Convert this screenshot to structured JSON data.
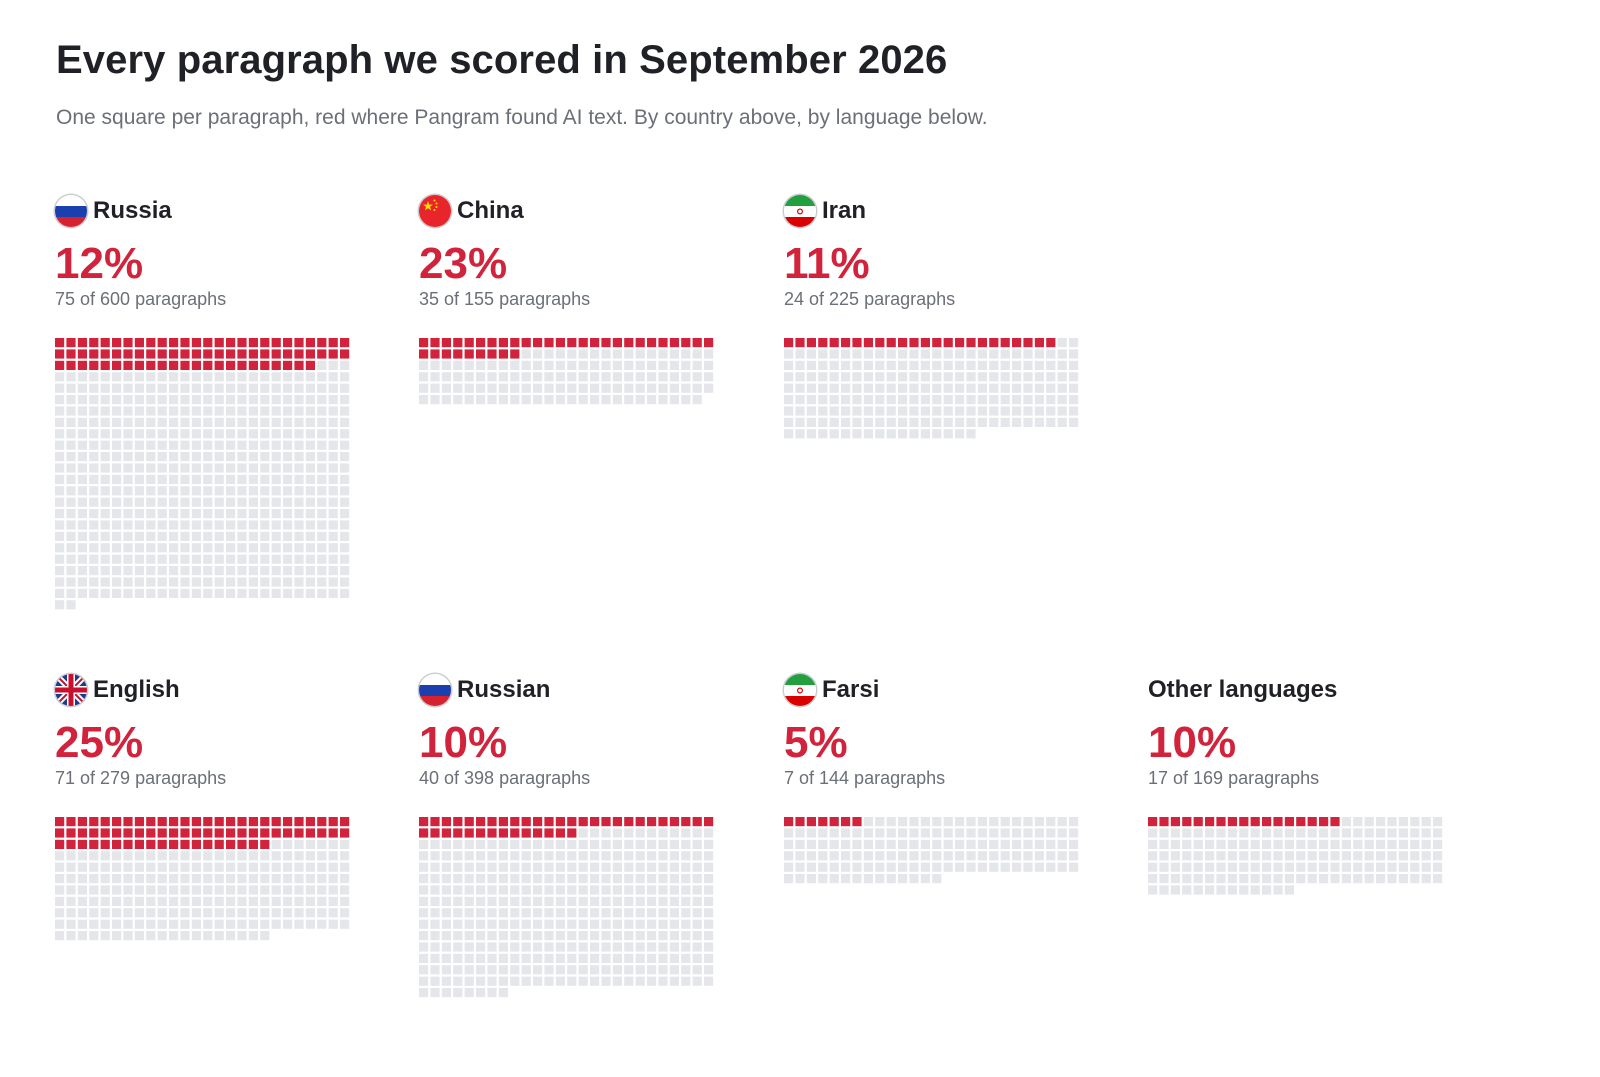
{
  "title": "Every paragraph we scored in September 2026",
  "subtitle": "One square per paragraph, red where Pangram found AI text. By country above, by language below.",
  "colors": {
    "ai": "#d2233c",
    "other": "#e4e6ea"
  },
  "chart_data": [
    {
      "type": "waffle",
      "name": "Russia",
      "flag": "russia-flag-icon",
      "percent": "12%",
      "count_label": "75 of 600 paragraphs",
      "ai": 75,
      "total": 600
    },
    {
      "type": "waffle",
      "name": "China",
      "flag": "china-flag-icon",
      "percent": "23%",
      "count_label": "35 of 155 paragraphs",
      "ai": 35,
      "total": 155
    },
    {
      "type": "waffle",
      "name": "Iran",
      "flag": "iran-flag-icon",
      "percent": "11%",
      "count_label": "24 of 225 paragraphs",
      "ai": 24,
      "total": 225
    },
    {
      "type": "waffle",
      "name": "English",
      "flag": "uk-flag-icon",
      "percent": "25%",
      "count_label": "71 of 279 paragraphs",
      "ai": 71,
      "total": 279
    },
    {
      "type": "waffle",
      "name": "Russian",
      "flag": "russia-flag-icon",
      "percent": "10%",
      "count_label": "40 of 398 paragraphs",
      "ai": 40,
      "total": 398
    },
    {
      "type": "waffle",
      "name": "Farsi",
      "flag": "iran-flag-icon",
      "percent": "5%",
      "count_label": "7 of 144 paragraphs",
      "ai": 7,
      "total": 144
    },
    {
      "type": "waffle",
      "name": "Other languages",
      "flag": "",
      "percent": "10%",
      "count_label": "17 of 169 paragraphs",
      "ai": 17,
      "total": 169
    }
  ]
}
